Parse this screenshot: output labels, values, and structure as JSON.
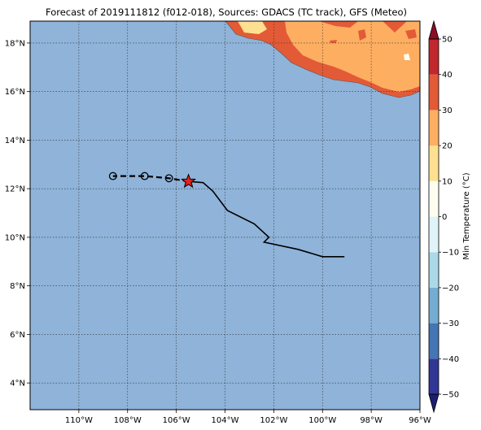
{
  "title": "Forecast of 2019111812 (f012-018), Sources: GDACS (TC track), GFS (Meteo)",
  "map": {
    "ocean_color": "#8fb3d9",
    "lon_range": [
      -112,
      -96
    ],
    "lat_range": [
      2.9,
      18.9
    ],
    "lon_ticks": [
      {
        "value": -110,
        "label": "110°W"
      },
      {
        "value": -108,
        "label": "108°W"
      },
      {
        "value": -106,
        "label": "106°W"
      },
      {
        "value": -104,
        "label": "104°W"
      },
      {
        "value": -102,
        "label": "102°W"
      },
      {
        "value": -100,
        "label": "100°W"
      },
      {
        "value": -98,
        "label": "98°W"
      },
      {
        "value": -96,
        "label": "96°W"
      }
    ],
    "lat_ticks": [
      {
        "value": 4,
        "label": "4°N"
      },
      {
        "value": 6,
        "label": "6°N"
      },
      {
        "value": 8,
        "label": "8°N"
      },
      {
        "value": 10,
        "label": "10°N"
      },
      {
        "value": 12,
        "label": "12°N"
      },
      {
        "value": 14,
        "label": "14°N"
      },
      {
        "value": 16,
        "label": "16°N"
      },
      {
        "value": 18,
        "label": "18°N"
      }
    ],
    "past_track": [
      {
        "lon": -105.5,
        "lat": 12.3
      },
      {
        "lon": -104.9,
        "lat": 12.25
      },
      {
        "lon": -104.5,
        "lat": 11.9
      },
      {
        "lon": -103.9,
        "lat": 11.1
      },
      {
        "lon": -102.8,
        "lat": 10.55
      },
      {
        "lon": -102.2,
        "lat": 10.0
      },
      {
        "lon": -102.4,
        "lat": 9.8
      },
      {
        "lon": -101.0,
        "lat": 9.5
      },
      {
        "lon": -100.0,
        "lat": 9.2
      },
      {
        "lon": -99.1,
        "lat": 9.2
      }
    ],
    "forecast_track": [
      {
        "lon": -105.5,
        "lat": 12.3
      },
      {
        "lon": -106.3,
        "lat": 12.43
      },
      {
        "lon": -107.3,
        "lat": 12.52
      },
      {
        "lon": -108.6,
        "lat": 12.52
      }
    ],
    "forecast_points": [
      {
        "lon": -106.3,
        "lat": 12.43
      },
      {
        "lon": -107.3,
        "lat": 12.52
      },
      {
        "lon": -108.6,
        "lat": 12.52
      }
    ],
    "current_position": {
      "lon": -105.5,
      "lat": 12.3,
      "color": "#e8211c"
    }
  },
  "colorbar": {
    "label": "Min Temperature (°C)",
    "min": -50,
    "max": 50,
    "ticks": [
      {
        "value": 50,
        "label": "50"
      },
      {
        "value": 40,
        "label": "40"
      },
      {
        "value": 30,
        "label": "30"
      },
      {
        "value": 20,
        "label": "20"
      },
      {
        "value": 10,
        "label": "10"
      },
      {
        "value": 0,
        "label": "0"
      },
      {
        "value": -10,
        "label": "−10"
      },
      {
        "value": -20,
        "label": "−20"
      },
      {
        "value": -30,
        "label": "−30"
      },
      {
        "value": -40,
        "label": "−40"
      },
      {
        "value": -50,
        "label": "−50"
      }
    ],
    "bands": [
      {
        "from": -50,
        "to": -40,
        "color": "#313695"
      },
      {
        "from": -40,
        "to": -30,
        "color": "#4575b4"
      },
      {
        "from": -30,
        "to": -20,
        "color": "#74add1"
      },
      {
        "from": -20,
        "to": -10,
        "color": "#abd9e9"
      },
      {
        "from": -10,
        "to": 0,
        "color": "#e0f3f8"
      },
      {
        "from": 0,
        "to": 10,
        "color": "#fffdf0"
      },
      {
        "from": 10,
        "to": 20,
        "color": "#fee090"
      },
      {
        "from": 20,
        "to": 30,
        "color": "#fdae61"
      },
      {
        "from": 30,
        "to": 40,
        "color": "#e35a37"
      },
      {
        "from": 40,
        "to": 50,
        "color": "#c1272d"
      }
    ],
    "extend_low_color": "#1c1f6e",
    "extend_high_color": "#8b0d26"
  }
}
